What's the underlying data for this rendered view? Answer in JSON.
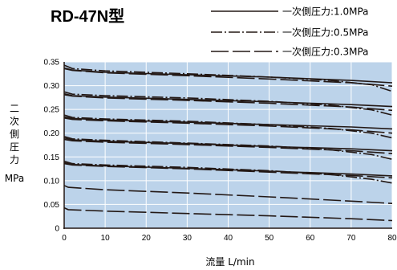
{
  "chart_data": {
    "type": "line",
    "title": "RD-47N型",
    "xlabel": "流量 L/min",
    "ylabel_chars": [
      "二",
      "次",
      "側",
      "圧",
      "力"
    ],
    "yunit": "MPa",
    "xlim": [
      0,
      80
    ],
    "ylim": [
      0,
      0.35
    ],
    "xticks": [
      "0",
      "10",
      "20",
      "30",
      "40",
      "50",
      "60",
      "70",
      "80"
    ],
    "yticks": [
      "0",
      "0.05",
      "0.10",
      "0.15",
      "0.20",
      "0.25",
      "0.30",
      "0.35"
    ],
    "grid": true,
    "background_color": "#bcd3ea",
    "line_color": "#231815",
    "legend_position": "top-right",
    "series": [
      {
        "name": "一次側圧力:1.0MPa",
        "dash": "solid",
        "x": [
          0,
          2,
          10,
          30,
          50,
          70,
          80
        ],
        "y": [
          0.337,
          0.333,
          0.328,
          0.323,
          0.318,
          0.311,
          0.306
        ]
      },
      {
        "name": "一次側圧力:0.5MPa",
        "dash": "dashdot",
        "x": [
          0,
          2,
          10,
          30,
          50,
          65,
          75,
          80
        ],
        "y": [
          0.343,
          0.336,
          0.331,
          0.325,
          0.318,
          0.311,
          0.302,
          0.288
        ]
      },
      {
        "name": "一次側圧力:0.3MPa",
        "dash": "longdash",
        "x": [
          0,
          2,
          10,
          30,
          50,
          70,
          80
        ],
        "y": [
          0.336,
          0.332,
          0.327,
          0.321,
          0.314,
          0.306,
          0.299
        ]
      },
      {
        "dash": "solid",
        "x": [
          0,
          2,
          10,
          30,
          50,
          70,
          80
        ],
        "y": [
          0.283,
          0.279,
          0.276,
          0.271,
          0.266,
          0.26,
          0.256
        ]
      },
      {
        "dash": "dashdot",
        "x": [
          0,
          2,
          10,
          30,
          50,
          65,
          75,
          80
        ],
        "y": [
          0.287,
          0.282,
          0.279,
          0.274,
          0.267,
          0.259,
          0.249,
          0.238
        ]
      },
      {
        "dash": "longdash",
        "x": [
          0,
          2,
          10,
          30,
          50,
          70,
          80
        ],
        "y": [
          0.281,
          0.278,
          0.274,
          0.269,
          0.263,
          0.255,
          0.248
        ]
      },
      {
        "dash": "solid",
        "x": [
          0,
          2,
          10,
          30,
          50,
          70,
          80
        ],
        "y": [
          0.234,
          0.231,
          0.228,
          0.223,
          0.218,
          0.213,
          0.209
        ]
      },
      {
        "dash": "dashdot",
        "x": [
          0,
          2,
          10,
          30,
          50,
          65,
          75,
          80
        ],
        "y": [
          0.238,
          0.233,
          0.23,
          0.225,
          0.218,
          0.21,
          0.2,
          0.19
        ]
      },
      {
        "dash": "longdash",
        "x": [
          0,
          2,
          10,
          30,
          50,
          70,
          80
        ],
        "y": [
          0.232,
          0.229,
          0.226,
          0.221,
          0.215,
          0.207,
          0.2
        ]
      },
      {
        "dash": "solid",
        "x": [
          0,
          2,
          10,
          30,
          50,
          70,
          80
        ],
        "y": [
          0.19,
          0.186,
          0.183,
          0.178,
          0.172,
          0.167,
          0.163
        ]
      },
      {
        "dash": "dashdot",
        "x": [
          0,
          2,
          10,
          30,
          50,
          65,
          75,
          80
        ],
        "y": [
          0.193,
          0.188,
          0.185,
          0.179,
          0.173,
          0.165,
          0.155,
          0.145
        ]
      },
      {
        "dash": "longdash",
        "x": [
          0,
          2,
          10,
          30,
          50,
          70,
          80
        ],
        "y": [
          0.187,
          0.184,
          0.181,
          0.176,
          0.17,
          0.163,
          0.157
        ]
      },
      {
        "dash": "solid",
        "x": [
          0,
          2,
          10,
          30,
          50,
          70,
          80
        ],
        "y": [
          0.138,
          0.134,
          0.131,
          0.126,
          0.12,
          0.114,
          0.11
        ]
      },
      {
        "dash": "dashdot",
        "x": [
          0,
          2,
          10,
          30,
          50,
          65,
          75,
          80
        ],
        "y": [
          0.141,
          0.136,
          0.133,
          0.128,
          0.121,
          0.113,
          0.103,
          0.095
        ]
      },
      {
        "dash": "longdash",
        "x": [
          0,
          2,
          10,
          30,
          50,
          70,
          80
        ],
        "y": [
          0.136,
          0.133,
          0.13,
          0.125,
          0.118,
          0.111,
          0.106
        ]
      },
      {
        "dash": "longdash",
        "x": [
          0,
          1,
          10,
          30,
          50,
          70,
          80
        ],
        "y": [
          0.09,
          0.086,
          0.081,
          0.074,
          0.066,
          0.057,
          0.052
        ]
      },
      {
        "dash": "longdash",
        "x": [
          0,
          1,
          10,
          30,
          50,
          70,
          80
        ],
        "y": [
          0.043,
          0.039,
          0.036,
          0.031,
          0.026,
          0.02,
          0.016
        ]
      }
    ]
  }
}
